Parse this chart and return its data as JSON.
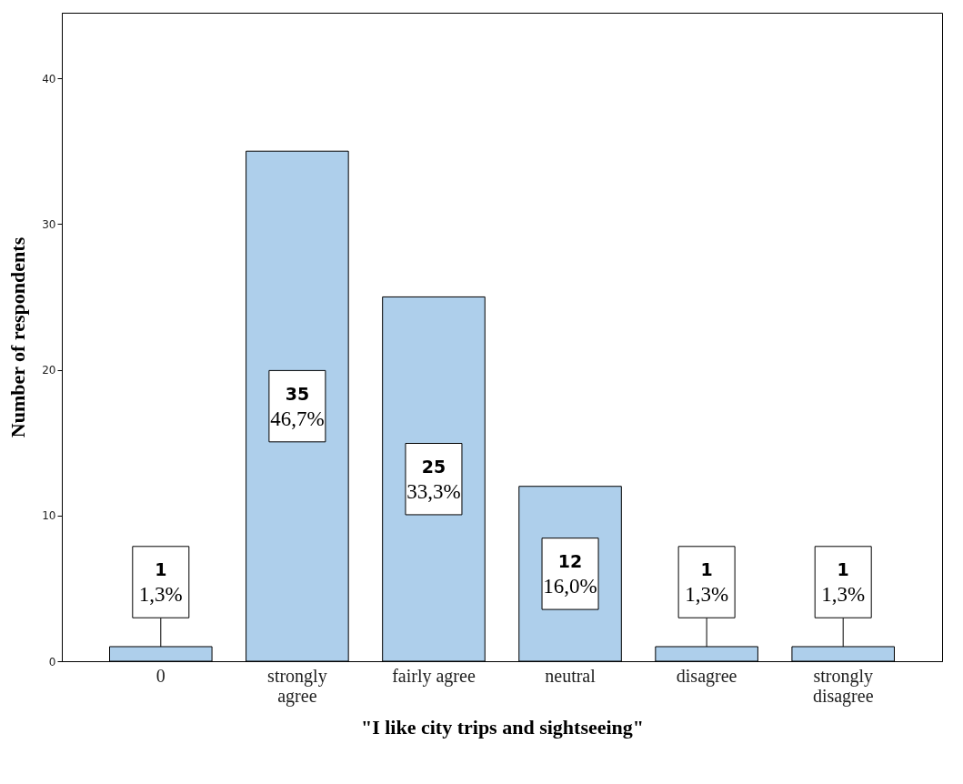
{
  "chart_data": {
    "type": "bar",
    "xlabel": "\"I like city trips and sightseeing\"",
    "ylabel": "Number of respondents",
    "categories": [
      "0",
      "strongly agree",
      "fairly agree",
      "neutral",
      "disagree",
      "strongly disagree"
    ],
    "values": [
      1,
      35,
      25,
      12,
      1,
      1
    ],
    "value_labels": [
      "1\n1,3%",
      "35\n46,7%",
      "25\n33,3%",
      "12\n16,0%",
      "1\n1,3%",
      "1\n1,3%"
    ],
    "color": "#aecfeb",
    "ylim": [
      0,
      44.5
    ],
    "yticks": [
      0,
      10,
      20,
      30,
      40
    ],
    "grid": false
  }
}
